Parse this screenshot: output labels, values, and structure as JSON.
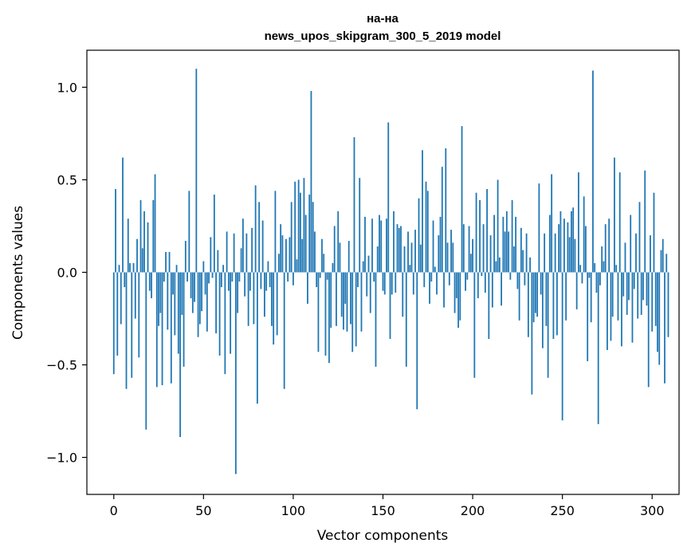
{
  "chart_data": {
    "type": "bar",
    "title_lines": [
      "на-на",
      "news_upos_skipgram_300_5_2019 model"
    ],
    "xlabel": "Vector components",
    "ylabel": "Components values",
    "xlim": [
      -15,
      315
    ],
    "ylim": [
      -1.2,
      1.2
    ],
    "x_ticks": [
      0,
      50,
      100,
      150,
      200,
      250,
      300
    ],
    "x_tick_labels": [
      "0",
      "50",
      "100",
      "150",
      "200",
      "250",
      "300"
    ],
    "y_ticks": [
      -1.0,
      -0.5,
      0.0,
      0.5,
      1.0
    ],
    "y_tick_labels": [
      "−1.0",
      "−0.5",
      "0.0",
      "0.5",
      "1.0"
    ],
    "bar_color": "#1f77b4",
    "values": [
      -0.55,
      0.45,
      -0.45,
      0.04,
      -0.28,
      0.62,
      -0.08,
      -0.63,
      0.29,
      0.05,
      -0.57,
      0.05,
      -0.25,
      0.18,
      -0.46,
      0.39,
      0.13,
      0.33,
      -0.85,
      0.27,
      -0.1,
      -0.14,
      0.39,
      0.53,
      -0.62,
      -0.29,
      -0.22,
      -0.61,
      -0.05,
      0.11,
      -0.31,
      0.11,
      -0.6,
      -0.12,
      -0.34,
      0.04,
      -0.44,
      -0.89,
      -0.23,
      -0.51,
      0.17,
      -0.05,
      0.44,
      -0.14,
      -0.22,
      -0.16,
      1.1,
      -0.35,
      -0.28,
      -0.21,
      0.06,
      -0.12,
      -0.32,
      -0.06,
      0.19,
      -0.03,
      0.42,
      -0.33,
      0.12,
      -0.45,
      -0.08,
      0.04,
      -0.55,
      0.22,
      -0.1,
      -0.44,
      -0.05,
      0.21,
      -1.09,
      -0.22,
      -0.05,
      0.13,
      0.29,
      -0.13,
      0.21,
      -0.29,
      -0.1,
      0.24,
      -0.28,
      0.47,
      -0.71,
      0.38,
      -0.09,
      0.28,
      -0.24,
      -0.1,
      0.06,
      -0.08,
      -0.29,
      -0.39,
      0.44,
      -0.34,
      0.1,
      0.26,
      0.2,
      -0.63,
      0.18,
      -0.05,
      0.19,
      0.38,
      -0.07,
      0.49,
      0.07,
      0.5,
      0.43,
      0.18,
      0.51,
      0.31,
      -0.17,
      0.42,
      0.98,
      0.38,
      0.22,
      -0.08,
      -0.43,
      -0.03,
      0.18,
      0.1,
      -0.45,
      -0.04,
      -0.49,
      -0.3,
      0.05,
      0.25,
      -0.29,
      0.33,
      0.16,
      -0.24,
      -0.31,
      -0.17,
      -0.32,
      0.17,
      -0.28,
      -0.43,
      0.73,
      -0.4,
      -0.08,
      0.51,
      -0.32,
      0.06,
      0.3,
      -0.13,
      0.09,
      -0.22,
      0.29,
      -0.05,
      -0.51,
      0.14,
      0.31,
      0.28,
      -0.1,
      -0.12,
      0.29,
      0.81,
      -0.36,
      -0.12,
      0.33,
      -0.11,
      0.26,
      0.24,
      0.25,
      -0.24,
      0.14,
      -0.51,
      0.22,
      0.04,
      0.16,
      -0.12,
      0.23,
      -0.74,
      0.4,
      0.15,
      0.66,
      -0.08,
      0.49,
      0.44,
      -0.17,
      -0.05,
      0.28,
      0.03,
      -0.12,
      0.2,
      0.3,
      0.57,
      -0.19,
      0.67,
      0.16,
      -0.07,
      0.23,
      0.16,
      -0.22,
      -0.14,
      -0.3,
      -0.26,
      0.79,
      0.26,
      -0.1,
      -0.04,
      0.25,
      0.1,
      0.18,
      -0.57,
      0.43,
      -0.14,
      0.39,
      -0.02,
      0.26,
      -0.11,
      0.45,
      -0.36,
      0.2,
      -0.19,
      0.31,
      0.06,
      0.5,
      0.08,
      -0.18,
      0.3,
      0.22,
      0.33,
      0.22,
      -0.04,
      0.39,
      0.14,
      0.3,
      -0.09,
      -0.26,
      0.24,
      0.12,
      -0.07,
      0.21,
      -0.35,
      0.08,
      -0.66,
      -0.27,
      -0.22,
      -0.24,
      0.48,
      -0.12,
      -0.41,
      0.21,
      -0.29,
      -0.57,
      0.31,
      0.53,
      -0.36,
      0.21,
      -0.34,
      0.26,
      0.33,
      -0.8,
      0.29,
      -0.26,
      0.27,
      0.19,
      0.33,
      0.35,
      0.18,
      -0.2,
      0.54,
      0.04,
      -0.06,
      0.41,
      0.25,
      -0.48,
      -0.03,
      -0.27,
      1.09,
      0.05,
      -0.11,
      -0.82,
      -0.07,
      0.14,
      0.06,
      0.26,
      -0.42,
      0.29,
      -0.37,
      -0.24,
      0.62,
      0.04,
      -0.26,
      0.54,
      -0.4,
      -0.13,
      0.16,
      -0.23,
      -0.15,
      0.31,
      -0.38,
      -0.09,
      0.21,
      -0.25,
      0.38,
      -0.23,
      -0.15,
      0.55,
      -0.18,
      -0.62,
      0.2,
      -0.32,
      0.43,
      -0.29,
      -0.43,
      -0.5,
      0.12,
      0.18,
      -0.6,
      0.1,
      -0.35
    ]
  }
}
